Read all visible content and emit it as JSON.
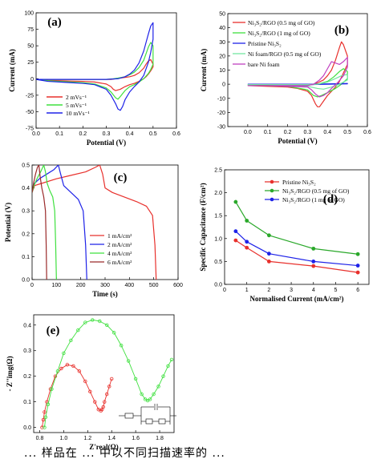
{
  "caption": "... 样品在 ... 中以不同扫描速率的 ...",
  "chart_data": [
    {
      "id": "a",
      "label": "(a)",
      "type": "line",
      "xlabel": "Potential (V)",
      "ylabel": "Current (mA)",
      "xlim": [
        0.0,
        0.6
      ],
      "ylim": [
        -75,
        100
      ],
      "xticks": [
        "0.0",
        "0.1",
        "0.2",
        "0.3",
        "0.4",
        "0.5",
        "0.6"
      ],
      "yticks": [
        "-75",
        "-50",
        "-25",
        "0",
        "25",
        "50",
        "75",
        "100"
      ],
      "legend_position": "bottom-left",
      "series": [
        {
          "name": "2 mVs⁻¹",
          "color": "#e8302c",
          "x": [
            0.0,
            0.05,
            0.1,
            0.15,
            0.2,
            0.25,
            0.28,
            0.3,
            0.32,
            0.34,
            0.36,
            0.38,
            0.4,
            0.42,
            0.44,
            0.46,
            0.47,
            0.48,
            0.49,
            0.5,
            0.5,
            0.49,
            0.48,
            0.47,
            0.46,
            0.44,
            0.42,
            0.4,
            0.38,
            0.36,
            0.34,
            0.33,
            0.32,
            0.3,
            0.25,
            0.2,
            0.15,
            0.1,
            0.05,
            0.0
          ],
          "y": [
            -1,
            -1,
            -1,
            -1,
            -1,
            -1,
            -1,
            -1,
            -1,
            0,
            1,
            2,
            3,
            5,
            9,
            16,
            22,
            27,
            29,
            22,
            18,
            12,
            7,
            3,
            0,
            -4,
            -7,
            -9,
            -12,
            -16,
            -18,
            -16,
            -12,
            -8,
            -5,
            -4,
            -3.5,
            -3,
            -2.5,
            -1
          ]
        },
        {
          "name": "5 mVs⁻¹",
          "color": "#3fe03f",
          "x": [
            0.0,
            0.05,
            0.1,
            0.15,
            0.2,
            0.25,
            0.3,
            0.33,
            0.35,
            0.38,
            0.4,
            0.42,
            0.44,
            0.46,
            0.47,
            0.48,
            0.49,
            0.5,
            0.5,
            0.49,
            0.48,
            0.46,
            0.44,
            0.42,
            0.4,
            0.38,
            0.36,
            0.35,
            0.34,
            0.32,
            0.3,
            0.25,
            0.2,
            0.15,
            0.1,
            0.05,
            0.0
          ],
          "y": [
            -1,
            -1,
            -1,
            -1,
            -1,
            -1,
            -1,
            0,
            1,
            3,
            6,
            10,
            17,
            28,
            38,
            48,
            55,
            50,
            22,
            14,
            8,
            0,
            -5,
            -9,
            -12,
            -18,
            -27,
            -31,
            -29,
            -20,
            -14,
            -8,
            -6,
            -5,
            -4,
            -3,
            -1
          ]
        },
        {
          "name": "10 mVs⁻¹",
          "color": "#1e22e8",
          "x": [
            0.0,
            0.05,
            0.1,
            0.15,
            0.2,
            0.25,
            0.3,
            0.35,
            0.38,
            0.4,
            0.42,
            0.44,
            0.46,
            0.47,
            0.48,
            0.49,
            0.5,
            0.5,
            0.49,
            0.48,
            0.46,
            0.44,
            0.42,
            0.4,
            0.38,
            0.37,
            0.36,
            0.35,
            0.34,
            0.32,
            0.3,
            0.25,
            0.2,
            0.15,
            0.1,
            0.05,
            0.0
          ],
          "y": [
            -1,
            -1,
            -1,
            -1,
            -1,
            -1,
            -1,
            0,
            3,
            7,
            13,
            24,
            42,
            55,
            68,
            80,
            85,
            60,
            40,
            25,
            5,
            -5,
            -12,
            -20,
            -32,
            -42,
            -48,
            -46,
            -38,
            -25,
            -16,
            -9,
            -7,
            -6,
            -5,
            -4,
            -1
          ]
        }
      ]
    },
    {
      "id": "b",
      "label": "(b)",
      "type": "line",
      "xlabel": "Potential (V)",
      "ylabel": "Current (mA)",
      "xlim": [
        -0.1,
        0.6
      ],
      "ylim": [
        -30,
        50
      ],
      "xticks": [
        "0.0",
        "0.1",
        "0.2",
        "0.3",
        "0.4",
        "0.5",
        "0.6"
      ],
      "yticks": [
        "-30",
        "-20",
        "-10",
        "0",
        "10",
        "20",
        "30",
        "40",
        "50"
      ],
      "legend_position": "top-left",
      "series": [
        {
          "name": "Ni₃S₂/RGO (0.5 mg of GO)",
          "color": "#e8302c",
          "x": [
            0.0,
            0.1,
            0.2,
            0.25,
            0.3,
            0.33,
            0.35,
            0.38,
            0.4,
            0.42,
            0.44,
            0.46,
            0.47,
            0.48,
            0.5,
            0.5,
            0.48,
            0.46,
            0.44,
            0.42,
            0.4,
            0.38,
            0.36,
            0.35,
            0.34,
            0.32,
            0.3,
            0.25,
            0.2,
            0.1,
            0.0
          ],
          "y": [
            -1,
            -1,
            -1,
            -1,
            -0.5,
            0,
            1,
            3,
            6,
            10,
            17,
            26,
            30,
            28,
            20,
            14,
            8,
            2,
            -2,
            -5,
            -8,
            -12,
            -16,
            -16,
            -14,
            -8,
            -5,
            -3,
            -2,
            -1.5,
            -1
          ]
        },
        {
          "name": "Ni₃S₂/RGO (1 mg of GO)",
          "color": "#3fe03f",
          "x": [
            0.0,
            0.1,
            0.2,
            0.3,
            0.35,
            0.4,
            0.43,
            0.46,
            0.48,
            0.5,
            0.5,
            0.47,
            0.44,
            0.4,
            0.37,
            0.35,
            0.33,
            0.3,
            0.2,
            0.1,
            0.0
          ],
          "y": [
            -0.5,
            -0.5,
            -0.5,
            -0.5,
            0,
            2,
            5,
            9,
            11,
            9,
            4,
            0,
            -3,
            -6,
            -8,
            -9,
            -8,
            -4,
            -1.5,
            -1,
            -0.5
          ]
        },
        {
          "name": "Pristine Ni₃S₂",
          "color": "#1e22e8",
          "x": [
            0.0,
            0.1,
            0.2,
            0.3,
            0.4,
            0.5,
            0.5,
            0.4,
            0.3,
            0.2,
            0.1,
            0.0
          ],
          "y": [
            0,
            0,
            0,
            0,
            0.2,
            0.5,
            0.3,
            0,
            -0.3,
            -0.3,
            -0.2,
            0
          ]
        },
        {
          "name": "Ni foam/RGO (0.5 mg of GO)",
          "color": "#73e6a0",
          "x": [
            0.0,
            0.1,
            0.2,
            0.3,
            0.35,
            0.4,
            0.44,
            0.47,
            0.5,
            0.5,
            0.46,
            0.42,
            0.38,
            0.35,
            0.3,
            0.2,
            0.1,
            0.0
          ],
          "y": [
            -0.3,
            -0.3,
            -0.3,
            -0.3,
            0,
            1.5,
            4,
            6,
            7,
            3,
            0,
            -2,
            -3.5,
            -3,
            -1.5,
            -0.5,
            -0.3,
            -0.3
          ]
        },
        {
          "name": "bare Ni foam",
          "color": "#c040c0",
          "x": [
            0.0,
            0.1,
            0.2,
            0.3,
            0.33,
            0.36,
            0.38,
            0.4,
            0.42,
            0.44,
            0.46,
            0.48,
            0.5,
            0.5,
            0.48,
            0.45,
            0.42,
            0.4,
            0.38,
            0.36,
            0.34,
            0.32,
            0.3,
            0.2,
            0.1,
            0.0
          ],
          "y": [
            -1,
            -1,
            -1,
            -1,
            0,
            3,
            6,
            11,
            16,
            15,
            14,
            16,
            19,
            12,
            6,
            1,
            -3,
            -6,
            -8,
            -9,
            -7,
            -4,
            -2,
            -1.5,
            -1,
            -1
          ]
        }
      ]
    },
    {
      "id": "c",
      "label": "(c)",
      "type": "line",
      "xlabel": "Time (s)",
      "ylabel": "Potential (V)",
      "xlim": [
        0,
        600
      ],
      "ylim": [
        0.0,
        0.5
      ],
      "xticks": [
        "0",
        "100",
        "200",
        "300",
        "400",
        "500",
        "600"
      ],
      "yticks": [
        "0.0",
        "0.1",
        "0.2",
        "0.3",
        "0.4",
        "0.5"
      ],
      "legend_position": "right",
      "series": [
        {
          "name": "1 mA/cm²",
          "color": "#e8302c",
          "x": [
            0,
            10,
            40,
            100,
            160,
            220,
            260,
            278,
            290,
            300,
            330,
            380,
            430,
            470,
            495,
            505,
            510
          ],
          "y": [
            0.38,
            0.41,
            0.42,
            0.44,
            0.455,
            0.47,
            0.49,
            0.5,
            0.46,
            0.4,
            0.38,
            0.36,
            0.34,
            0.32,
            0.28,
            0.15,
            0.0
          ]
        },
        {
          "name": "2 mA/cm²",
          "color": "#1e22e8",
          "x": [
            0,
            10,
            30,
            60,
            90,
            108,
            115,
            130,
            160,
            190,
            210,
            220,
            225
          ],
          "y": [
            0.38,
            0.42,
            0.44,
            0.46,
            0.48,
            0.5,
            0.47,
            0.41,
            0.38,
            0.35,
            0.3,
            0.15,
            0.0
          ]
        },
        {
          "name": "4 mA/cm²",
          "color": "#3fe03f",
          "x": [
            0,
            8,
            20,
            35,
            48,
            55,
            62,
            72,
            85,
            93,
            97,
            100
          ],
          "y": [
            0.38,
            0.41,
            0.44,
            0.47,
            0.5,
            0.47,
            0.42,
            0.39,
            0.36,
            0.3,
            0.15,
            0.0
          ]
        },
        {
          "name": "6 mA/cm²",
          "color": "#9a2a2a",
          "x": [
            0,
            6,
            14,
            22,
            28,
            33,
            40,
            48,
            55,
            58,
            60
          ],
          "y": [
            0.38,
            0.42,
            0.46,
            0.49,
            0.5,
            0.45,
            0.4,
            0.36,
            0.3,
            0.15,
            0.0
          ]
        }
      ]
    },
    {
      "id": "d",
      "label": "(d)",
      "type": "line",
      "xlabel": "Normalised Current (mA/cm²)",
      "ylabel": "Specific Capacitance (F/cm²)",
      "xlim": [
        0,
        6.5
      ],
      "ylim": [
        0.0,
        2.5
      ],
      "xticks": [
        "0",
        "1",
        "2",
        "3",
        "4",
        "5",
        "6"
      ],
      "yticks": [
        "0.0",
        "0.5",
        "1.0",
        "1.5",
        "2.0",
        "2.5"
      ],
      "legend_position": "top-right",
      "x": [
        0.5,
        1,
        2,
        4,
        6
      ],
      "series": [
        {
          "name": "Pristine Ni₃S₂",
          "color": "#e8302c",
          "values": [
            0.96,
            0.8,
            0.5,
            0.4,
            0.26
          ]
        },
        {
          "name": "Ni₃S₂/RGO (0.5 mg of GO)",
          "color": "#2aa82a",
          "values": [
            1.8,
            1.39,
            1.07,
            0.78,
            0.66
          ]
        },
        {
          "name": "Ni₃S₂/RGO (1 mg of GO)",
          "color": "#1e22e8",
          "values": [
            1.16,
            0.93,
            0.67,
            0.5,
            0.41
          ]
        }
      ]
    },
    {
      "id": "e",
      "label": "(e)",
      "type": "scatter",
      "xlabel": "Z'real(Ω)",
      "ylabel": "- Z''img(Ω)",
      "xlim": [
        0.75,
        1.92
      ],
      "ylim": [
        -0.02,
        0.44
      ],
      "xticks": [
        "0.8",
        "1.0",
        "1.2",
        "1.4",
        "1.6",
        "1.8"
      ],
      "yticks": [
        "0.0",
        "0.1",
        "0.2",
        "0.3",
        "0.4"
      ],
      "series": [
        {
          "name": "",
          "color": "#e8302c",
          "x": [
            0.82,
            0.83,
            0.84,
            0.86,
            0.89,
            0.93,
            0.98,
            1.03,
            1.08,
            1.13,
            1.18,
            1.22,
            1.26,
            1.29,
            1.31,
            1.32,
            1.33,
            1.34,
            1.36,
            1.38,
            1.4
          ],
          "y": [
            0.0,
            0.03,
            0.06,
            0.1,
            0.15,
            0.2,
            0.23,
            0.245,
            0.24,
            0.22,
            0.18,
            0.14,
            0.1,
            0.07,
            0.065,
            0.07,
            0.08,
            0.1,
            0.13,
            0.16,
            0.19
          ]
        },
        {
          "name": "",
          "color": "#3fe03f",
          "x": [
            0.84,
            0.85,
            0.87,
            0.9,
            0.95,
            1.0,
            1.06,
            1.12,
            1.18,
            1.24,
            1.3,
            1.36,
            1.42,
            1.48,
            1.54,
            1.6,
            1.65,
            1.68,
            1.7,
            1.72,
            1.75,
            1.79,
            1.83,
            1.87,
            1.9
          ],
          "y": [
            0.0,
            0.04,
            0.09,
            0.15,
            0.22,
            0.29,
            0.34,
            0.38,
            0.41,
            0.42,
            0.415,
            0.4,
            0.37,
            0.32,
            0.26,
            0.19,
            0.13,
            0.11,
            0.105,
            0.11,
            0.13,
            0.16,
            0.2,
            0.24,
            0.265
          ]
        }
      ]
    }
  ]
}
